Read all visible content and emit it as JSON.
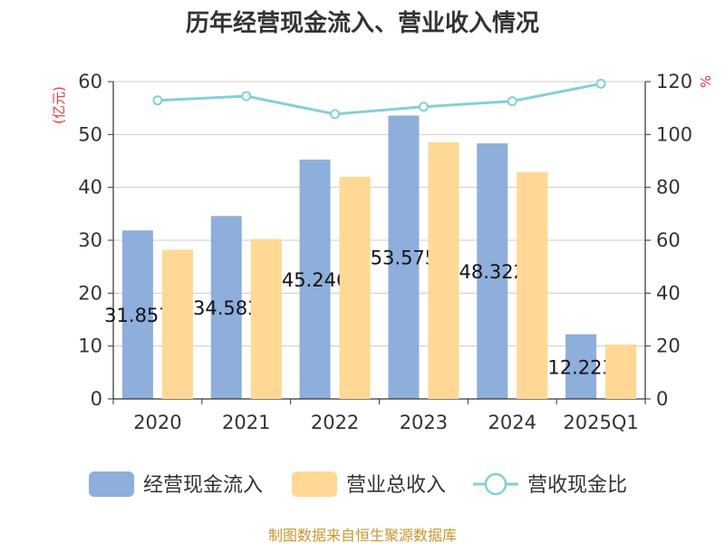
{
  "title": "历年经营现金流入、营业收入情况",
  "left_unit": "(亿元)",
  "right_unit": "%",
  "source": "制图数据来自恒生聚源数据库",
  "colors": {
    "cash_inflow": "#8eaedc",
    "revenue": "#ffd896",
    "ratio_line": "#85d0d4",
    "axis": "#333333",
    "grid": "#cccccc"
  },
  "chart_data": {
    "type": "bar",
    "title": "历年经营现金流入、营业收入情况",
    "categories": [
      "2020",
      "2021",
      "2022",
      "2023",
      "2024",
      "2025Q1"
    ],
    "ylim": [
      0,
      60
    ],
    "y_ticks": [
      0,
      10,
      20,
      30,
      40,
      50,
      60
    ],
    "y2lim": [
      0,
      120
    ],
    "y2_ticks": [
      0,
      20,
      40,
      60,
      80,
      100,
      120
    ],
    "grid": true,
    "legend_position": "bottom",
    "series": [
      {
        "name": "经营现金流入",
        "type": "bar",
        "axis": "left",
        "values": [
          31.857,
          34.583,
          45.246,
          53.575,
          48.322,
          12.223
        ],
        "labels": [
          "31.857",
          "34.583",
          "45.246",
          "53.575",
          "48.322",
          "12.223"
        ]
      },
      {
        "name": "营业总收入",
        "type": "bar",
        "axis": "left",
        "values": [
          28.2,
          30.2,
          42.0,
          48.5,
          42.9,
          10.3
        ]
      },
      {
        "name": "营收现金比",
        "type": "line",
        "axis": "right",
        "values": [
          112.9,
          114.5,
          107.7,
          110.5,
          112.6,
          119.2
        ]
      }
    ]
  }
}
